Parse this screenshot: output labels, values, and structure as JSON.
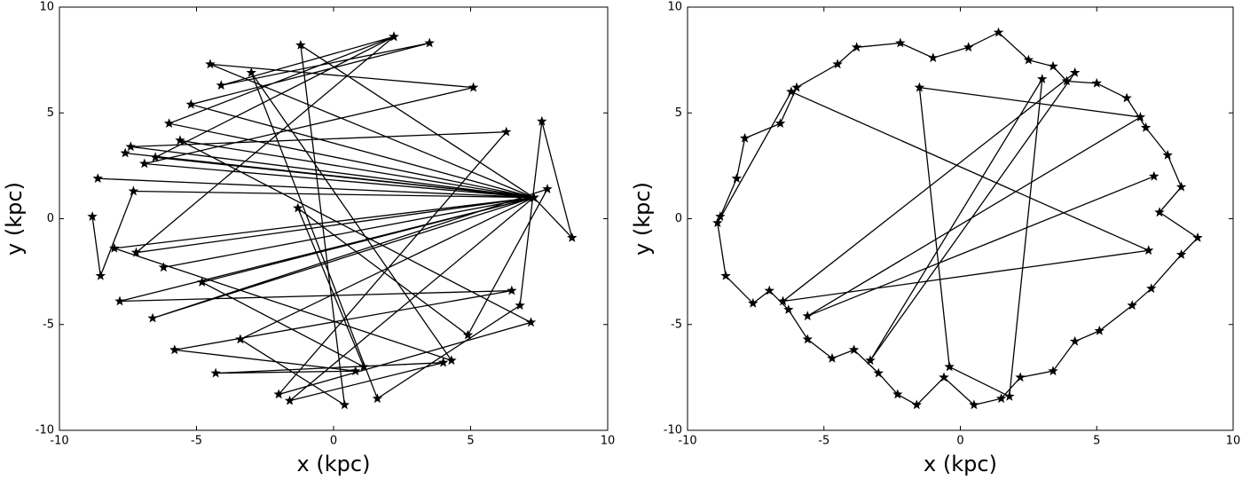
{
  "chart_data": [
    {
      "type": "line",
      "marker": "*",
      "color": "#000000",
      "xlabel": "x (kpc)",
      "ylabel": "y (kpc)",
      "xlim": [
        -10,
        10
      ],
      "ylim": [
        -10,
        10
      ],
      "xticks": [
        -10,
        -5,
        0,
        5,
        10
      ],
      "yticks": [
        -10,
        -5,
        0,
        5,
        10
      ],
      "x": [
        -8.8,
        -8.5,
        -7.3,
        7.3,
        -7.6,
        7.3,
        -6.0,
        2.2,
        -6.5,
        7.3,
        -7.8,
        6.5,
        -5.8,
        0.8,
        -4.3,
        4.0,
        -1.6,
        7.3,
        -8.6,
        7.3,
        -6.9,
        5.1,
        -4.5,
        7.3,
        -7.2,
        2.2,
        -4.1,
        3.5,
        -5.2,
        7.3,
        -6.2,
        7.3,
        -3.4,
        0.4,
        -1.2,
        7.3,
        -7.4,
        6.3,
        -2.0,
        7.2,
        -5.6,
        7.3,
        -8.0,
        4.3,
        -3.0,
        1.6,
        6.8,
        7.6,
        8.7,
        7.3,
        -6.6,
        7.8,
        4.9,
        -1.3,
        1.1,
        -4.8,
        7.3
      ],
      "values": [
        0.1,
        -2.7,
        1.3,
        1.0,
        3.1,
        1.0,
        4.5,
        8.6,
        2.9,
        1.0,
        -3.9,
        -3.4,
        -6.2,
        -7.2,
        -7.3,
        -6.8,
        -8.6,
        1.0,
        1.9,
        1.0,
        2.6,
        6.2,
        7.3,
        1.0,
        -1.6,
        8.6,
        6.3,
        8.3,
        5.4,
        1.0,
        -2.3,
        1.0,
        -5.7,
        -8.8,
        8.2,
        1.0,
        3.4,
        4.1,
        -8.3,
        -4.9,
        3.7,
        1.0,
        -1.4,
        -6.7,
        6.9,
        -8.5,
        -4.1,
        4.6,
        -0.9,
        1.0,
        -4.7,
        1.4,
        -5.5,
        0.5,
        -7.0,
        -3.0,
        1.0
      ]
    },
    {
      "type": "line",
      "marker": "*",
      "color": "#000000",
      "xlabel": "x (kpc)",
      "ylabel": "y (kpc)",
      "xlim": [
        -10,
        10
      ],
      "ylim": [
        -10,
        10
      ],
      "xticks": [
        -10,
        -5,
        0,
        5,
        10
      ],
      "yticks": [
        -10,
        -5,
        0,
        5,
        10
      ],
      "x": [
        -8.8,
        -8.2,
        -7.9,
        -6.6,
        -6.0,
        -4.5,
        -3.8,
        -2.2,
        -1.0,
        0.3,
        1.4,
        2.5,
        3.4,
        3.9,
        5.0,
        6.1,
        6.8,
        7.6,
        8.1,
        7.3,
        8.7,
        8.1,
        7.0,
        6.3,
        5.1,
        4.2,
        3.4,
        2.2,
        1.5,
        0.5,
        -0.6,
        -1.6,
        -2.3,
        -3.0,
        -3.9,
        -4.7,
        -5.6,
        -6.3,
        -7.0,
        -7.6,
        -8.6,
        -8.9,
        -6.2,
        6.9,
        -6.5,
        4.2,
        -3.3,
        3.0,
        1.8,
        -0.4,
        -1.5,
        6.6,
        -5.6,
        7.1
      ],
      "values": [
        0.1,
        1.9,
        3.8,
        4.5,
        6.2,
        7.3,
        8.1,
        8.3,
        7.6,
        8.1,
        8.8,
        7.5,
        7.2,
        6.5,
        6.4,
        5.7,
        4.3,
        3.0,
        1.5,
        0.3,
        -0.9,
        -1.7,
        -3.3,
        -4.1,
        -5.3,
        -5.8,
        -7.2,
        -7.5,
        -8.5,
        -8.8,
        -7.5,
        -8.8,
        -8.3,
        -7.3,
        -6.2,
        -6.6,
        -5.7,
        -4.3,
        -3.4,
        -4.0,
        -2.7,
        -0.2,
        6.0,
        -1.5,
        -3.9,
        6.9,
        -6.7,
        6.6,
        -8.4,
        -7.0,
        6.2,
        4.8,
        -4.6,
        2.0
      ]
    }
  ]
}
